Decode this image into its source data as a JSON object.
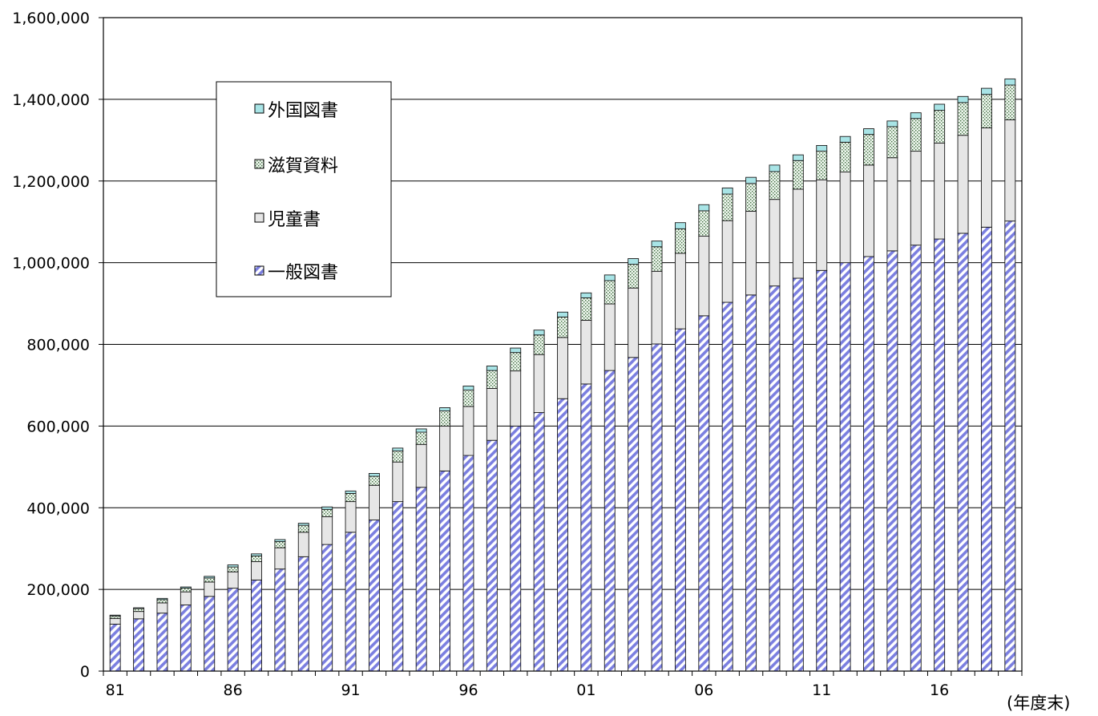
{
  "chart_data": {
    "type": "bar",
    "stacked": true,
    "x": [
      1981,
      1982,
      1983,
      1984,
      1985,
      1986,
      1987,
      1988,
      1989,
      1990,
      1991,
      1992,
      1993,
      1994,
      1995,
      1996,
      1997,
      1998,
      1999,
      2000,
      2001,
      2002,
      2003,
      2004,
      2005,
      2006,
      2007,
      2008,
      2009,
      2010,
      2011,
      2012,
      2013,
      2014,
      2015,
      2016,
      2017,
      2018,
      2019
    ],
    "x_tick_labels": [
      {
        "x": 1981,
        "label": "81"
      },
      {
        "x": 1986,
        "label": "86"
      },
      {
        "x": 1991,
        "label": "91"
      },
      {
        "x": 1996,
        "label": "96"
      },
      {
        "x": 2001,
        "label": "01"
      },
      {
        "x": 2006,
        "label": "06"
      },
      {
        "x": 2011,
        "label": "11"
      },
      {
        "x": 2016,
        "label": "16"
      }
    ],
    "series": [
      {
        "name": "一般図書",
        "color": "#7b7fe0",
        "values": [
          115000,
          128000,
          142000,
          162000,
          183000,
          203000,
          223000,
          250000,
          280000,
          310000,
          340000,
          370000,
          415000,
          450000,
          490000,
          528000,
          565000,
          600000,
          633000,
          667000,
          703000,
          736000,
          768000,
          801000,
          838000,
          870000,
          903000,
          921000,
          943000,
          962000,
          981000,
          1000000,
          1015000,
          1029000,
          1043000,
          1058000,
          1072000,
          1087000,
          1102000
        ]
      },
      {
        "name": "児童書",
        "color": "#e6e6e6",
        "values": [
          14000,
          18000,
          25000,
          32000,
          35000,
          40000,
          45000,
          52000,
          60000,
          68000,
          75000,
          85000,
          97000,
          105000,
          110000,
          120000,
          127000,
          135000,
          142000,
          150000,
          156000,
          163000,
          170000,
          178000,
          185000,
          195000,
          200000,
          205000,
          212000,
          218000,
          222000,
          222000,
          224000,
          228000,
          230000,
          235000,
          240000,
          243000,
          248000
        ]
      },
      {
        "name": "滋賀資料",
        "color": "#dff0df",
        "values": [
          6000,
          7000,
          8000,
          9000,
          10000,
          12000,
          14000,
          15000,
          17000,
          18000,
          20000,
          22000,
          27000,
          30000,
          37000,
          40000,
          44000,
          45000,
          48000,
          50000,
          55000,
          57000,
          58000,
          60000,
          60000,
          62000,
          65000,
          68000,
          68000,
          70000,
          70000,
          73000,
          75000,
          76000,
          80000,
          80000,
          80000,
          82000,
          85000
        ]
      },
      {
        "name": "外国図書",
        "color": "#a8e4e6",
        "values": [
          2000,
          2000,
          3000,
          3000,
          4000,
          5000,
          5000,
          5000,
          5000,
          6000,
          6000,
          7000,
          7000,
          8000,
          8000,
          10000,
          11000,
          11000,
          12000,
          12000,
          12000,
          14000,
          14000,
          14000,
          15000,
          15000,
          15000,
          15000,
          16000,
          14000,
          14000,
          14000,
          14000,
          14000,
          14000,
          15000,
          15000,
          15000,
          15000
        ]
      }
    ],
    "ylim": [
      0,
      1600000
    ],
    "yticks": [
      "0",
      "200,000",
      "400,000",
      "600,000",
      "800,000",
      "1,000,000",
      "1,200,000",
      "1,400,000",
      "1,600,000"
    ],
    "ytick_values": [
      0,
      200000,
      400000,
      600000,
      800000,
      1000000,
      1200000,
      1400000,
      1600000
    ],
    "x_unit_label": "(年度末)",
    "legend_order": [
      "外国図書",
      "滋賀資料",
      "児童書",
      "一般図書"
    ],
    "legend_position": "top-left",
    "grid": "horizontal"
  }
}
